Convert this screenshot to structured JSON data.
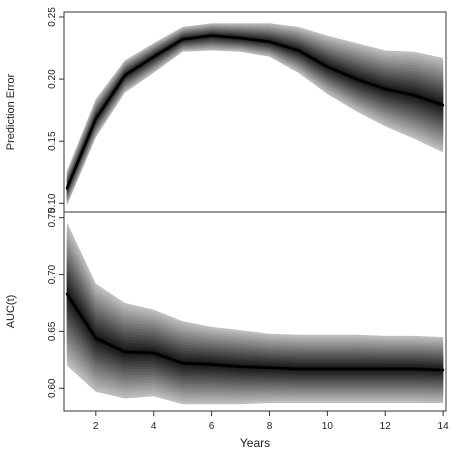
{
  "chart_data": [
    {
      "type": "line",
      "title": "",
      "xlabel": "",
      "ylabel": "Prediction Error",
      "x": [
        1,
        2,
        3,
        4,
        5,
        6,
        7,
        8,
        9,
        10,
        11,
        12,
        13,
        14
      ],
      "xlim": [
        0.9,
        14.1
      ],
      "ylim": [
        0.093,
        0.254
      ],
      "yticks": [
        0.1,
        0.15,
        0.2,
        0.25
      ],
      "ytick_labels": [
        "0.10",
        "0.15",
        "0.20",
        "0.25"
      ],
      "grid": false,
      "series": [
        {
          "values": [
            0.112,
            0.168,
            0.203,
            0.218,
            0.232,
            0.235,
            0.233,
            0.23,
            0.223,
            0.21,
            0.2,
            0.192,
            0.187,
            0.179
          ]
        }
      ],
      "band_upper": [
        0.126,
        0.184,
        0.215,
        0.229,
        0.242,
        0.245,
        0.245,
        0.245,
        0.242,
        0.235,
        0.229,
        0.223,
        0.222,
        0.217
      ],
      "band_lower": [
        0.098,
        0.153,
        0.189,
        0.205,
        0.222,
        0.223,
        0.222,
        0.218,
        0.205,
        0.188,
        0.174,
        0.162,
        0.152,
        0.141
      ],
      "band_color": "#bdbdbd",
      "line_color": "#000000"
    },
    {
      "type": "line",
      "title": "",
      "xlabel": "Years",
      "ylabel": "AUC(t)",
      "x": [
        1,
        2,
        3,
        4,
        5,
        6,
        7,
        8,
        9,
        10,
        11,
        12,
        13,
        14
      ],
      "xlim": [
        0.9,
        14.1
      ],
      "ylim": [
        0.58,
        0.755
      ],
      "xticks": [
        2,
        4,
        6,
        8,
        10,
        12,
        14
      ],
      "xtick_labels": [
        "2",
        "4",
        "6",
        "8",
        "10",
        "12",
        "14"
      ],
      "yticks": [
        0.6,
        0.65,
        0.7,
        0.75
      ],
      "ytick_labels": [
        "0.60",
        "0.65",
        "0.70",
        "0.75"
      ],
      "grid": false,
      "series": [
        {
          "values": [
            0.683,
            0.644,
            0.632,
            0.631,
            0.622,
            0.621,
            0.619,
            0.618,
            0.617,
            0.617,
            0.617,
            0.617,
            0.617,
            0.616
          ]
        }
      ],
      "band_upper": [
        0.746,
        0.692,
        0.675,
        0.669,
        0.659,
        0.654,
        0.651,
        0.648,
        0.647,
        0.647,
        0.647,
        0.646,
        0.646,
        0.645
      ],
      "band_lower": [
        0.62,
        0.597,
        0.591,
        0.593,
        0.586,
        0.586,
        0.586,
        0.587,
        0.587,
        0.587,
        0.587,
        0.587,
        0.587,
        0.587
      ],
      "band_color": "#bdbdbd",
      "line_color": "#000000"
    }
  ]
}
